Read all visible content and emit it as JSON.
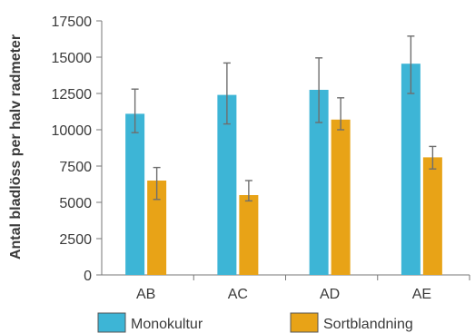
{
  "chart_data": {
    "type": "bar",
    "title": "",
    "xlabel": "",
    "ylabel": "Antal bladlöss per halv radmeter",
    "ylim": [
      0,
      17500
    ],
    "yticks": [
      0,
      2500,
      5000,
      7500,
      10000,
      12500,
      15000,
      17500
    ],
    "ytick_labels": [
      "0",
      "2500",
      "5000",
      "7500",
      "10000",
      "12500",
      "15000",
      "17500"
    ],
    "categories": [
      "AB",
      "AC",
      "AD",
      "AE"
    ],
    "grid": false,
    "legend_position": "bottom",
    "series": [
      {
        "name": "Monokultur",
        "color": "#3db5d6",
        "values": [
          11100,
          12400,
          12750,
          14550
        ],
        "error_low": [
          9800,
          10400,
          10500,
          12500
        ],
        "error_high": [
          12800,
          14600,
          14950,
          16450
        ]
      },
      {
        "name": "Sortblandning",
        "color": "#e8a317",
        "values": [
          6500,
          5500,
          10700,
          8100
        ],
        "error_low": [
          5200,
          5100,
          10000,
          7300
        ],
        "error_high": [
          7400,
          6500,
          12200,
          8850
        ]
      }
    ]
  }
}
